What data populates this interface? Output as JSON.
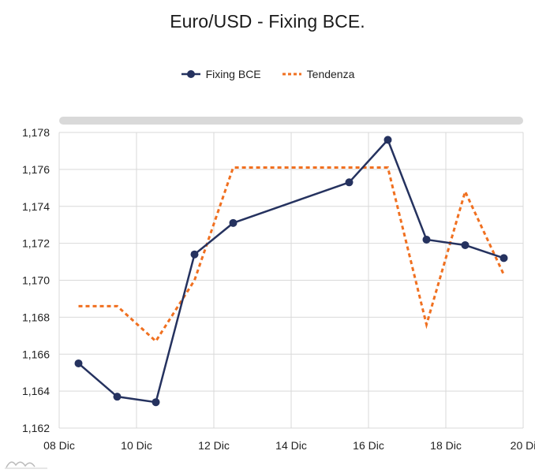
{
  "title": "Euro/USD - Fixing BCE.",
  "legend": {
    "items": [
      {
        "label": "Fixing BCE",
        "color": "#25325f",
        "style": "solid-marker"
      },
      {
        "label": "Tendenza",
        "color": "#f07020",
        "style": "dotted"
      }
    ]
  },
  "colors": {
    "fixing": "#25325f",
    "tendenza": "#f07020",
    "grid": "#d9d9d9",
    "scrollbar": "#d9d9d9"
  },
  "chart_data": {
    "type": "line",
    "title": "Euro/USD - Fixing BCE.",
    "xlabel": "",
    "ylabel": "",
    "x_ticks": [
      {
        "day": 8,
        "label": "08 Dic"
      },
      {
        "day": 10,
        "label": "10 Dic"
      },
      {
        "day": 12,
        "label": "12 Dic"
      },
      {
        "day": 14,
        "label": "14 Dic"
      },
      {
        "day": 16,
        "label": "16 Dic"
      },
      {
        "day": 18,
        "label": "18 Dic"
      },
      {
        "day": 20,
        "label": "20 Di"
      }
    ],
    "y_ticks": [
      "1,162",
      "1,164",
      "1,166",
      "1,168",
      "1,170",
      "1,172",
      "1,174",
      "1,176",
      "1,178"
    ],
    "xlim": [
      8,
      20
    ],
    "ylim": [
      1.162,
      1.178
    ],
    "grid": true,
    "legend_position": "top-center",
    "series": [
      {
        "name": "Fixing BCE",
        "style": "solid",
        "markers": true,
        "points": [
          {
            "x": 8.5,
            "y": 1.1655
          },
          {
            "x": 9.5,
            "y": 1.1637
          },
          {
            "x": 10.5,
            "y": 1.1634
          },
          {
            "x": 11.5,
            "y": 1.1714
          },
          {
            "x": 12.5,
            "y": 1.1731
          },
          {
            "x": 15.5,
            "y": 1.1753
          },
          {
            "x": 16.5,
            "y": 1.1776
          },
          {
            "x": 17.5,
            "y": 1.1722
          },
          {
            "x": 18.5,
            "y": 1.1719
          },
          {
            "x": 19.5,
            "y": 1.1712
          }
        ]
      },
      {
        "name": "Tendenza",
        "style": "dotted",
        "markers": false,
        "points": [
          {
            "x": 8.5,
            "y": 1.1686
          },
          {
            "x": 9.5,
            "y": 1.1686
          },
          {
            "x": 10.5,
            "y": 1.1667
          },
          {
            "x": 11.5,
            "y": 1.17
          },
          {
            "x": 12.5,
            "y": 1.1761
          },
          {
            "x": 15.5,
            "y": 1.1761
          },
          {
            "x": 16.5,
            "y": 1.1761
          },
          {
            "x": 17.5,
            "y": 1.1676
          },
          {
            "x": 18.5,
            "y": 1.1748
          },
          {
            "x": 19.5,
            "y": 1.1703
          }
        ]
      }
    ]
  }
}
